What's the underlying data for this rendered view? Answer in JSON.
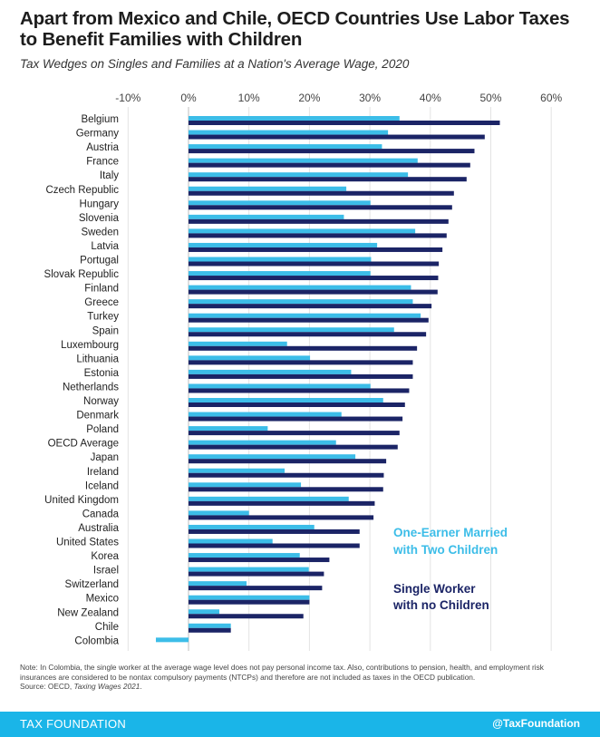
{
  "header": {
    "title": "Apart from Mexico and Chile, OECD Countries Use Labor Taxes to Benefit Families with Children",
    "subtitle": "Tax Wedges on Singles and Families at a Nation's Average Wage, 2020"
  },
  "chart_data": {
    "type": "bar",
    "orientation": "horizontal",
    "xlim": [
      -10,
      60
    ],
    "xticks": [
      "-10%",
      "0%",
      "10%",
      "20%",
      "30%",
      "40%",
      "50%",
      "60%"
    ],
    "grid": true,
    "legend_placement": "bottom-right",
    "categories": [
      "Belgium",
      "Germany",
      "Austria",
      "France",
      "Italy",
      "Czech Republic",
      "Hungary",
      "Slovenia",
      "Sweden",
      "Latvia",
      "Portugal",
      "Slovak Republic",
      "Finland",
      "Greece",
      "Turkey",
      "Spain",
      "Luxembourg",
      "Lithuania",
      "Estonia",
      "Netherlands",
      "Norway",
      "Denmark",
      "Poland",
      "OECD Average",
      "Japan",
      "Ireland",
      "Iceland",
      "United Kingdom",
      "Canada",
      "Australia",
      "United States",
      "Korea",
      "Israel",
      "Switzerland",
      "Mexico",
      "New Zealand",
      "Chile",
      "Colombia"
    ],
    "series": [
      {
        "name": "One-Earner Married with Two Children",
        "color": "#3cbde8",
        "values": [
          34.9,
          33.0,
          32.0,
          37.9,
          36.3,
          26.1,
          30.1,
          25.7,
          37.5,
          31.2,
          30.2,
          30.1,
          36.8,
          37.1,
          38.4,
          34.0,
          16.3,
          20.1,
          26.9,
          30.1,
          32.2,
          25.3,
          13.1,
          24.4,
          27.6,
          15.9,
          18.6,
          26.5,
          10.0,
          20.8,
          13.9,
          18.4,
          19.9,
          9.6,
          20.0,
          5.1,
          7.0,
          -5.4
        ]
      },
      {
        "name": "Single Worker with no Children",
        "color": "#1b2466",
        "values": [
          51.5,
          49.0,
          47.3,
          46.6,
          46.0,
          43.9,
          43.6,
          43.0,
          42.7,
          42.0,
          41.4,
          41.3,
          41.2,
          40.2,
          39.7,
          39.3,
          37.8,
          37.1,
          37.1,
          36.5,
          35.8,
          35.4,
          34.9,
          34.6,
          32.7,
          32.3,
          32.2,
          30.8,
          30.6,
          28.3,
          28.3,
          23.3,
          22.4,
          22.1,
          20.0,
          19.0,
          7.0,
          0.0
        ]
      }
    ]
  },
  "legend": {
    "married_line1": "One-Earner Married",
    "married_line2": "with Two Children",
    "single_line1": "Single Worker",
    "single_line2": "with no Children"
  },
  "note": {
    "text": "Note: In Colombia, the single worker at the average wage level does not pay personal income tax. Also, contributions to pension, health, and employment risk insurances are considered to be nontax compulsory payments (NTCPs) and therefore are not included as taxes in the OECD publication.",
    "source_prefix": "Source: OECD, ",
    "source_title": "Taxing Wages 2021",
    "source_suffix": "."
  },
  "footer": {
    "brand": "TAX FOUNDATION",
    "handle": "@TaxFoundation"
  }
}
